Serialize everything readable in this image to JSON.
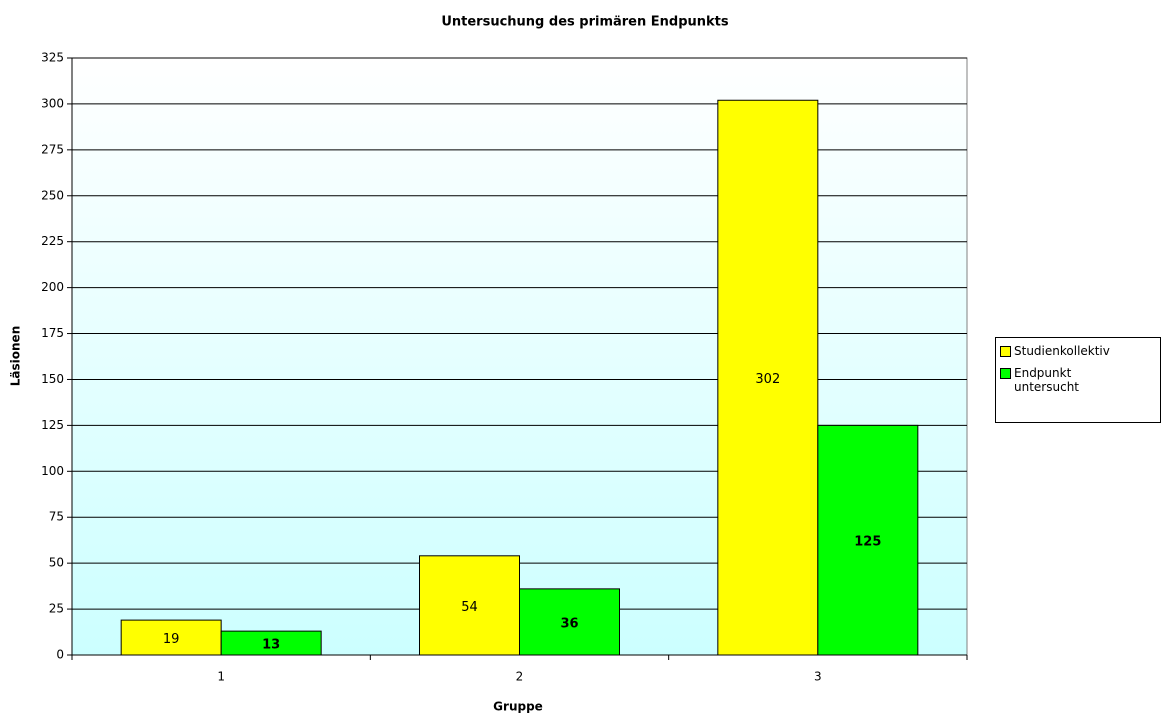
{
  "chart_data": {
    "type": "bar",
    "title": "Untersuchung des primären Endpunkts",
    "x_label": "Gruppe",
    "y_label": "Läsionen",
    "categories": [
      "1",
      "2",
      "3"
    ],
    "series": [
      {
        "name": "Studienkollektiv",
        "color": "#ffff00",
        "values": [
          19,
          54,
          302
        ]
      },
      {
        "name": "Endpunkt untersucht",
        "color": "#00ff00",
        "values": [
          13,
          36,
          125
        ]
      }
    ],
    "ylim": [
      0,
      325
    ],
    "yticks": [
      0,
      25,
      50,
      75,
      100,
      125,
      150,
      175,
      200,
      225,
      250,
      275,
      300,
      325
    ],
    "grid": true,
    "legend": "right"
  }
}
